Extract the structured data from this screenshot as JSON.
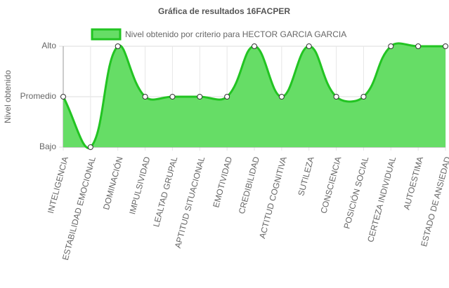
{
  "chart_data": {
    "type": "line",
    "title": "Gráfica de resultados 16FACPER",
    "y_label": "Nivel obtenido",
    "categories": [
      "INTELIGENCIA",
      "ESTABILIDAD EMOCIONAL",
      "DOMINACIÓN",
      "IMPULSIVIDAD",
      "LEALTAD GRUPAL",
      "APTITUD SITUACIONAL",
      "EMOTIVIDAD",
      "CREDIBILIDAD",
      "ACTITUD COGNITIVA",
      "SUTILEZA",
      "CONSCIENCIA",
      "POSICIÓN SOCIAL",
      "CERTEZA INDIVIDUAL",
      "AUTOESTIMA",
      "ESTADO DE ANSIEDAD"
    ],
    "series": [
      {
        "name": "Nivel obtenido por criterio para HECTOR GARCIA GARCIA",
        "color": "#22c422",
        "fill": "#66dd66",
        "values": [
          2,
          1,
          3,
          2,
          2,
          2,
          2,
          3,
          2,
          3,
          2,
          2,
          3,
          3,
          3
        ]
      }
    ],
    "ylim": [
      1,
      3
    ],
    "yticks": [
      {
        "value": 1,
        "label": "Bajo"
      },
      {
        "value": 2,
        "label": "Promedio"
      },
      {
        "value": 3,
        "label": "Alto"
      }
    ],
    "grid": true,
    "legend": "top"
  }
}
